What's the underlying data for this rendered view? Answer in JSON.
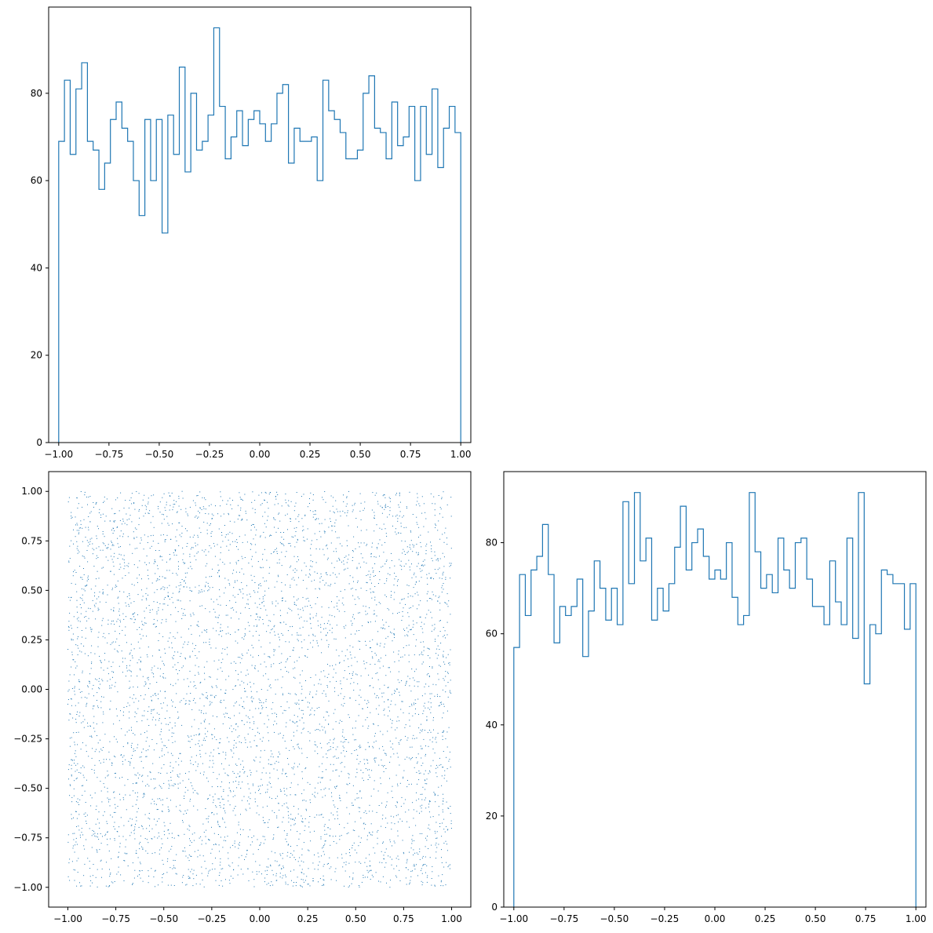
{
  "chart_data": [
    {
      "type": "histogram",
      "panel": "top-left",
      "histtype": "step",
      "color": "#1f77b4",
      "xlim": [
        -1.05,
        1.05
      ],
      "ylim": [
        0,
        99.75
      ],
      "bin_range": [
        -1.0,
        1.0
      ],
      "xticks": [
        "−1.00",
        "−0.75",
        "−0.50",
        "−0.25",
        "0.00",
        "0.25",
        "0.50",
        "0.75",
        "1.00"
      ],
      "yticks": [
        "0",
        "20",
        "40",
        "60",
        "80"
      ],
      "counts": [
        69,
        83,
        66,
        81,
        87,
        69,
        67,
        58,
        64,
        74,
        78,
        72,
        69,
        60,
        52,
        74,
        60,
        74,
        48,
        75,
        66,
        86,
        62,
        80,
        67,
        69,
        75,
        95,
        77,
        65,
        70,
        76,
        68,
        74,
        76,
        73,
        69,
        73,
        80,
        82,
        64,
        72,
        69,
        69,
        70,
        60,
        83,
        76,
        74,
        71,
        65,
        65,
        67,
        80,
        84,
        72,
        71,
        65,
        78,
        68,
        70,
        77,
        60,
        77,
        66,
        81,
        63,
        72,
        77,
        71
      ]
    },
    {
      "type": "scatter",
      "panel": "bottom-left",
      "color": "#1f77b4",
      "n_points": 5000,
      "distribution": "uniform [-1, 1] x [-1, 1]",
      "xlim": [
        -1.1,
        1.1
      ],
      "ylim": [
        -1.1,
        1.1
      ],
      "xticks": [
        "−1.00",
        "−0.75",
        "−0.50",
        "−0.25",
        "0.00",
        "0.25",
        "0.50",
        "0.75",
        "1.00"
      ],
      "yticks": [
        "1.00",
        "0.75",
        "0.50",
        "0.25",
        "0.00",
        "−0.25",
        "−0.50",
        "−0.75",
        "−1.00"
      ]
    },
    {
      "type": "histogram",
      "panel": "bottom-right",
      "histtype": "step",
      "color": "#1f77b4",
      "xlim": [
        -1.05,
        1.05
      ],
      "ylim": [
        0,
        95.6
      ],
      "bin_range": [
        -1.0,
        1.0
      ],
      "xticks": [
        "−1.00",
        "−0.75",
        "−0.50",
        "−0.25",
        "0.00",
        "0.25",
        "0.50",
        "0.75",
        "1.00"
      ],
      "yticks": [
        "0",
        "20",
        "40",
        "60",
        "80"
      ],
      "counts": [
        57,
        73,
        64,
        74,
        77,
        84,
        73,
        58,
        66,
        64,
        66,
        72,
        55,
        65,
        76,
        70,
        63,
        70,
        62,
        89,
        71,
        91,
        76,
        81,
        63,
        70,
        65,
        71,
        79,
        88,
        74,
        80,
        83,
        77,
        72,
        74,
        72,
        80,
        68,
        62,
        64,
        91,
        78,
        70,
        73,
        69,
        81,
        74,
        70,
        80,
        81,
        72,
        66,
        66,
        62,
        76,
        67,
        62,
        81,
        59,
        91,
        49,
        62,
        60,
        74,
        73,
        71,
        71,
        61,
        71
      ]
    }
  ]
}
